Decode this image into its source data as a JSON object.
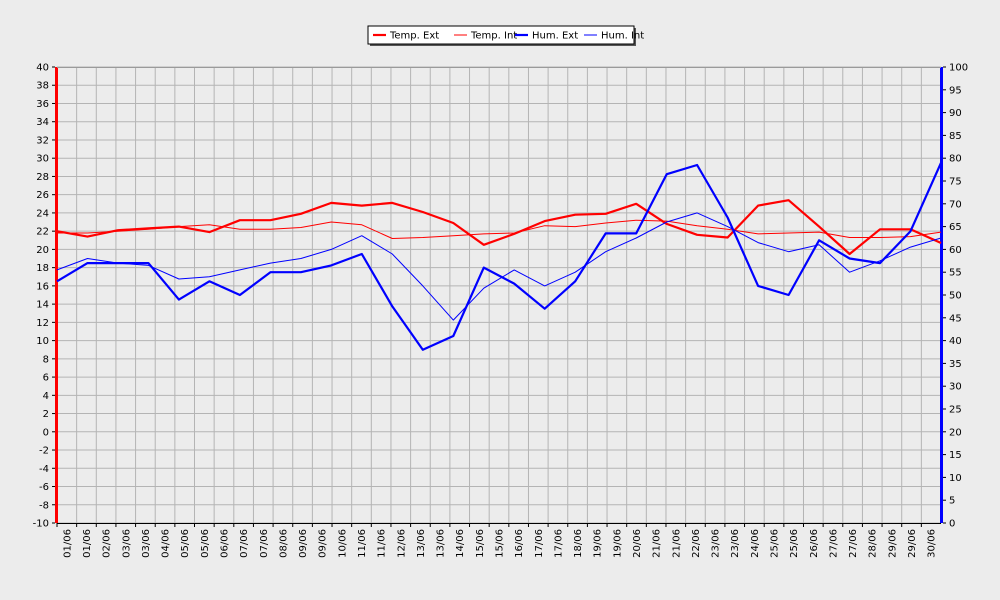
{
  "chart_data": {
    "type": "line",
    "grid": true,
    "legend_position": "top-center",
    "left_axis": {
      "ylim": [
        -10,
        40
      ],
      "ticks": [
        40,
        38,
        36,
        34,
        32,
        30,
        28,
        26,
        24,
        22,
        20,
        18,
        16,
        14,
        12,
        10,
        8,
        6,
        4,
        2,
        0,
        -2,
        -4,
        -6,
        -8,
        -10
      ]
    },
    "right_axis": {
      "ylim": [
        0,
        100
      ],
      "ticks": [
        100,
        95,
        90,
        85,
        80,
        75,
        70,
        65,
        60,
        55,
        50,
        45,
        40,
        35,
        30,
        25,
        20,
        15,
        10,
        5,
        0
      ]
    },
    "x_labels": [
      "01/06",
      "01/06",
      "02/06",
      "03/06",
      "03/06",
      "04/06",
      "05/06",
      "05/06",
      "06/06",
      "07/06",
      "07/06",
      "08/06",
      "09/06",
      "09/06",
      "10/06",
      "11/06",
      "11/06",
      "12/06",
      "13/06",
      "13/06",
      "14/06",
      "15/06",
      "15/06",
      "16/06",
      "17/06",
      "17/06",
      "18/06",
      "19/06",
      "19/06",
      "20/06",
      "21/06",
      "21/06",
      "22/06",
      "23/06",
      "23/06",
      "24/06",
      "25/06",
      "25/06",
      "26/06",
      "27/06",
      "27/06",
      "28/06",
      "29/06",
      "29/06",
      "30/06"
    ],
    "x_points": [
      "01/06",
      "02/06",
      "03/06",
      "04/06",
      "05/06",
      "06/06",
      "07/06",
      "08/06",
      "09/06",
      "10/06",
      "11/06",
      "12/06",
      "13/06",
      "14/06",
      "15/06",
      "16/06",
      "17/06",
      "18/06",
      "19/06",
      "20/06",
      "21/06",
      "22/06",
      "23/06",
      "24/06",
      "25/06",
      "26/06",
      "27/06",
      "28/06",
      "29/06",
      "30/06"
    ],
    "series": [
      {
        "name": "Temp. Ext",
        "axis": "left",
        "color": "#ff0000",
        "width": 2.2,
        "values": [
          22.0,
          21.4,
          22.1,
          22.3,
          22.5,
          21.9,
          23.2,
          23.2,
          23.9,
          25.1,
          24.8,
          25.1,
          24.1,
          22.9,
          20.5,
          21.7,
          23.1,
          23.8,
          23.9,
          25.0,
          22.8,
          21.6,
          21.3,
          24.8,
          25.4,
          22.5,
          19.5,
          22.2,
          22.2,
          20.7
        ]
      },
      {
        "name": "Temp. Int",
        "axis": "left",
        "color": "#ff0000",
        "width": 1,
        "values": [
          21.8,
          21.8,
          22.0,
          22.2,
          22.5,
          22.7,
          22.2,
          22.2,
          22.4,
          23.0,
          22.7,
          21.2,
          21.3,
          21.5,
          21.7,
          21.8,
          22.6,
          22.5,
          22.9,
          23.2,
          23.1,
          22.6,
          22.2,
          21.7,
          21.8,
          21.9,
          21.3,
          21.3,
          21.4,
          21.9
        ]
      },
      {
        "name": "Hum. Ext",
        "axis": "right",
        "color": "#0000ff",
        "width": 2.2,
        "values": [
          53,
          57,
          57,
          57,
          49,
          53,
          50,
          55,
          55,
          56.5,
          59,
          47.5,
          38,
          41,
          56,
          52.5,
          47,
          53,
          63.5,
          63.5,
          76.5,
          78.5,
          67,
          52,
          50,
          62,
          58,
          57,
          64,
          79
        ]
      },
      {
        "name": "Hum. Int",
        "axis": "right",
        "color": "#0000ff",
        "width": 1,
        "values": [
          55.5,
          58,
          57,
          56.5,
          53.5,
          54,
          55.5,
          57,
          58,
          60,
          63,
          59,
          52,
          44.5,
          51.5,
          55.5,
          52,
          55,
          59.5,
          62.5,
          66,
          68,
          65,
          61.5,
          59.5,
          61,
          55,
          57.5,
          60.5,
          62.5
        ]
      }
    ]
  }
}
